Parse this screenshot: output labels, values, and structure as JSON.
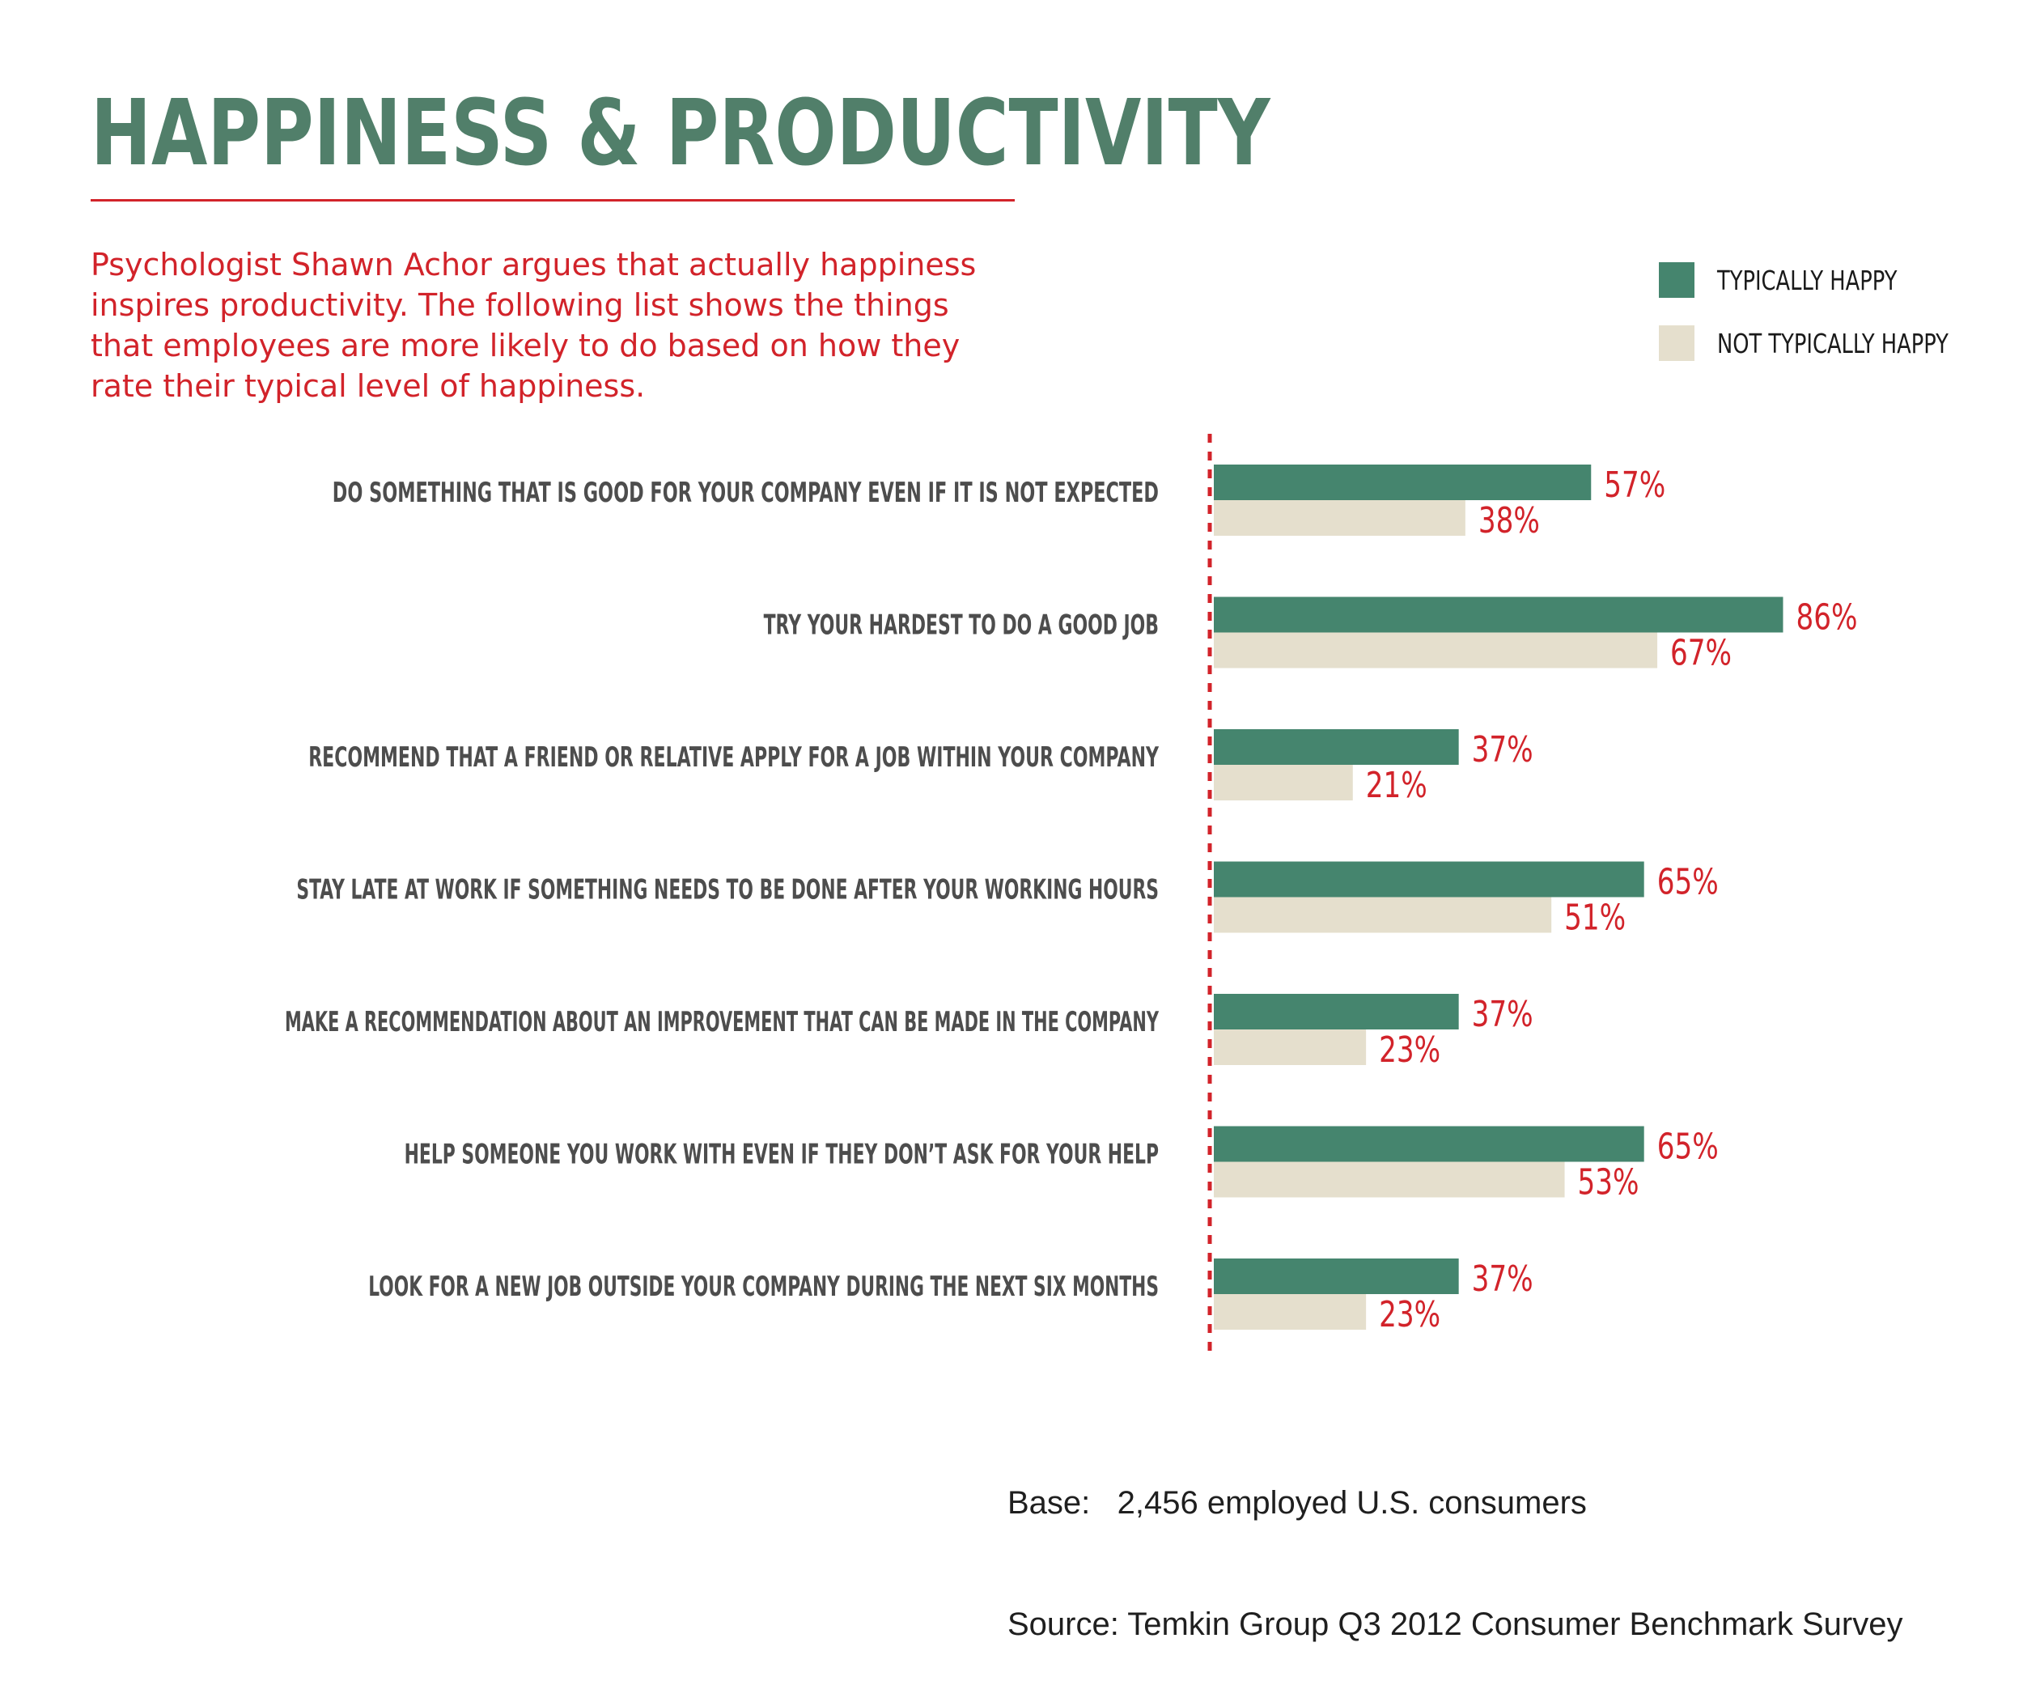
{
  "header": {
    "title": "HAPPINESS & PRODUCTIVITY",
    "intro": "Psychologist Shawn Achor argues that actually happiness inspires productivity. The following list shows the things that employees are more likely to do based on how they rate their typical level of happiness."
  },
  "legend": {
    "items": [
      {
        "label": "TYPICALLY HAPPY",
        "color": "#45856e"
      },
      {
        "label": "NOT TYPICALLY HAPPY",
        "color": "#e5dfcd"
      }
    ]
  },
  "footer": {
    "base_line": "Base:   2,456 employed U.S. consumers",
    "source_line": "Source: Temkin Group Q3 2012 Consumer Benchmark Survey"
  },
  "colors": {
    "title": "#517f6a",
    "accent_red": "#d2232a",
    "category_text": "#4d4d4d"
  },
  "chart_data": {
    "type": "bar",
    "orientation": "horizontal",
    "title": "HAPPINESS & PRODUCTIVITY",
    "categories": [
      "DO SOMETHING THAT IS GOOD FOR YOUR COMPANY EVEN IF IT IS NOT EXPECTED",
      "TRY YOUR HARDEST TO DO A GOOD JOB",
      "RECOMMEND THAT A FRIEND OR RELATIVE APPLY FOR A JOB WITHIN YOUR COMPANY",
      "STAY LATE AT WORK IF SOMETHING NEEDS TO BE DONE AFTER YOUR WORKING HOURS",
      "MAKE A RECOMMENDATION ABOUT AN IMPROVEMENT THAT CAN BE MADE IN THE COMPANY",
      "HELP SOMEONE YOU WORK WITH EVEN IF THEY DON’T ASK FOR YOUR HELP",
      "LOOK FOR A NEW JOB OUTSIDE YOUR COMPANY DURING THE NEXT SIX MONTHS"
    ],
    "series": [
      {
        "name": "TYPICALLY HAPPY",
        "color": "#45856e",
        "values": [
          57,
          86,
          37,
          65,
          37,
          65,
          37
        ]
      },
      {
        "name": "NOT TYPICALLY HAPPY",
        "color": "#e5dfcd",
        "values": [
          38,
          67,
          21,
          51,
          23,
          53,
          23
        ]
      }
    ],
    "value_labels": [
      [
        "57%",
        "86%",
        "37%",
        "65%",
        "37%",
        "65%",
        "37%"
      ],
      [
        "38%",
        "67%",
        "21%",
        "51%",
        "23%",
        "53%",
        "23%"
      ]
    ],
    "xlim": [
      0,
      100
    ],
    "unit": "%",
    "legend_position": "top-right",
    "grid": false,
    "baseline_style": "dashed red"
  }
}
